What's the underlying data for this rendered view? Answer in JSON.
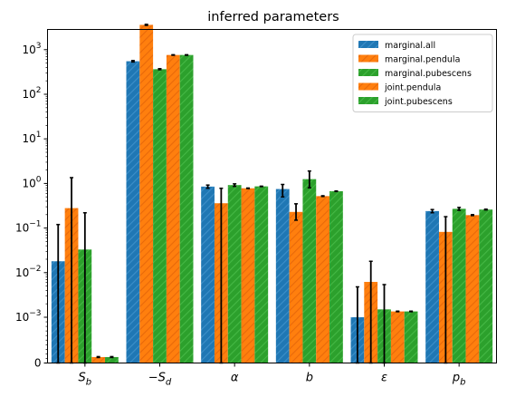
{
  "chart_data": {
    "type": "bar",
    "title": "inferred parameters",
    "xlabel": "",
    "ylabel": "",
    "yscale": "symlog",
    "ylim": [
      0,
      4000
    ],
    "categories": [
      {
        "base": "S",
        "sub": "b",
        "neg": false
      },
      {
        "base": "S",
        "sub": "d",
        "neg": true
      },
      {
        "base": "α",
        "sub": "",
        "neg": false
      },
      {
        "base": "b",
        "sub": "",
        "neg": false
      },
      {
        "base": "ε",
        "sub": "",
        "neg": false
      },
      {
        "base": "p",
        "sub": "b",
        "neg": false
      }
    ],
    "yticks": [
      {
        "value": 0,
        "base": "0",
        "exp": ""
      },
      {
        "value": 0.001,
        "base": "10",
        "exp": "−3"
      },
      {
        "value": 0.01,
        "base": "10",
        "exp": "−2"
      },
      {
        "value": 0.1,
        "base": "10",
        "exp": "−1"
      },
      {
        "value": 1,
        "base": "10",
        "exp": "0"
      },
      {
        "value": 10,
        "base": "10",
        "exp": "1"
      },
      {
        "value": 100,
        "base": "10",
        "exp": "2"
      },
      {
        "value": 1000,
        "base": "10",
        "exp": "3"
      }
    ],
    "legend_position": "top-right",
    "series": [
      {
        "name": "marginal.all",
        "color": "#1f77b4",
        "hatch": "#3d8fc9",
        "values": [
          0.018,
          550,
          0.85,
          0.75,
          0.001,
          0.24
        ],
        "err_low": [
          0.0,
          530,
          0.78,
          0.5,
          0.0,
          0.22
        ],
        "err_high": [
          0.12,
          570,
          0.92,
          0.95,
          0.0048,
          0.26
        ]
      },
      {
        "name": "marginal.pendula",
        "color": "#ff7f0e",
        "hatch": "#e8690a",
        "values": [
          0.28,
          3600,
          0.36,
          0.23,
          0.0062,
          0.082
        ],
        "err_low": [
          0.0,
          3500,
          0.0,
          0.15,
          0.0,
          0.0
        ],
        "err_high": [
          1.35,
          3700,
          0.78,
          0.35,
          0.018,
          0.18
        ]
      },
      {
        "name": "marginal.pubescens",
        "color": "#2ca02c",
        "hatch": "#45b845",
        "values": [
          0.033,
          365,
          0.92,
          1.25,
          0.0015,
          0.27
        ],
        "err_low": [
          0.0,
          355,
          0.86,
          0.8,
          0.0,
          0.25
        ],
        "err_high": [
          0.22,
          375,
          0.98,
          1.9,
          0.0054,
          0.29
        ]
      },
      {
        "name": "joint.pendula",
        "color": "#ff7f0e",
        "hatch": "#e8690a",
        "values": [
          0.00013,
          760,
          0.78,
          0.52,
          0.00135,
          0.195
        ],
        "err_low": [
          0.00012,
          750,
          0.77,
          0.51,
          0.00133,
          0.19
        ],
        "err_high": [
          0.00014,
          770,
          0.79,
          0.53,
          0.00137,
          0.2
        ]
      },
      {
        "name": "joint.pubescens",
        "color": "#2ca02c",
        "hatch": "#45b845",
        "values": [
          0.00013,
          760,
          0.86,
          0.67,
          0.00135,
          0.26
        ],
        "err_low": [
          0.00012,
          750,
          0.85,
          0.66,
          0.00133,
          0.255
        ],
        "err_high": [
          0.00014,
          770,
          0.87,
          0.68,
          0.00137,
          0.265
        ]
      }
    ]
  }
}
